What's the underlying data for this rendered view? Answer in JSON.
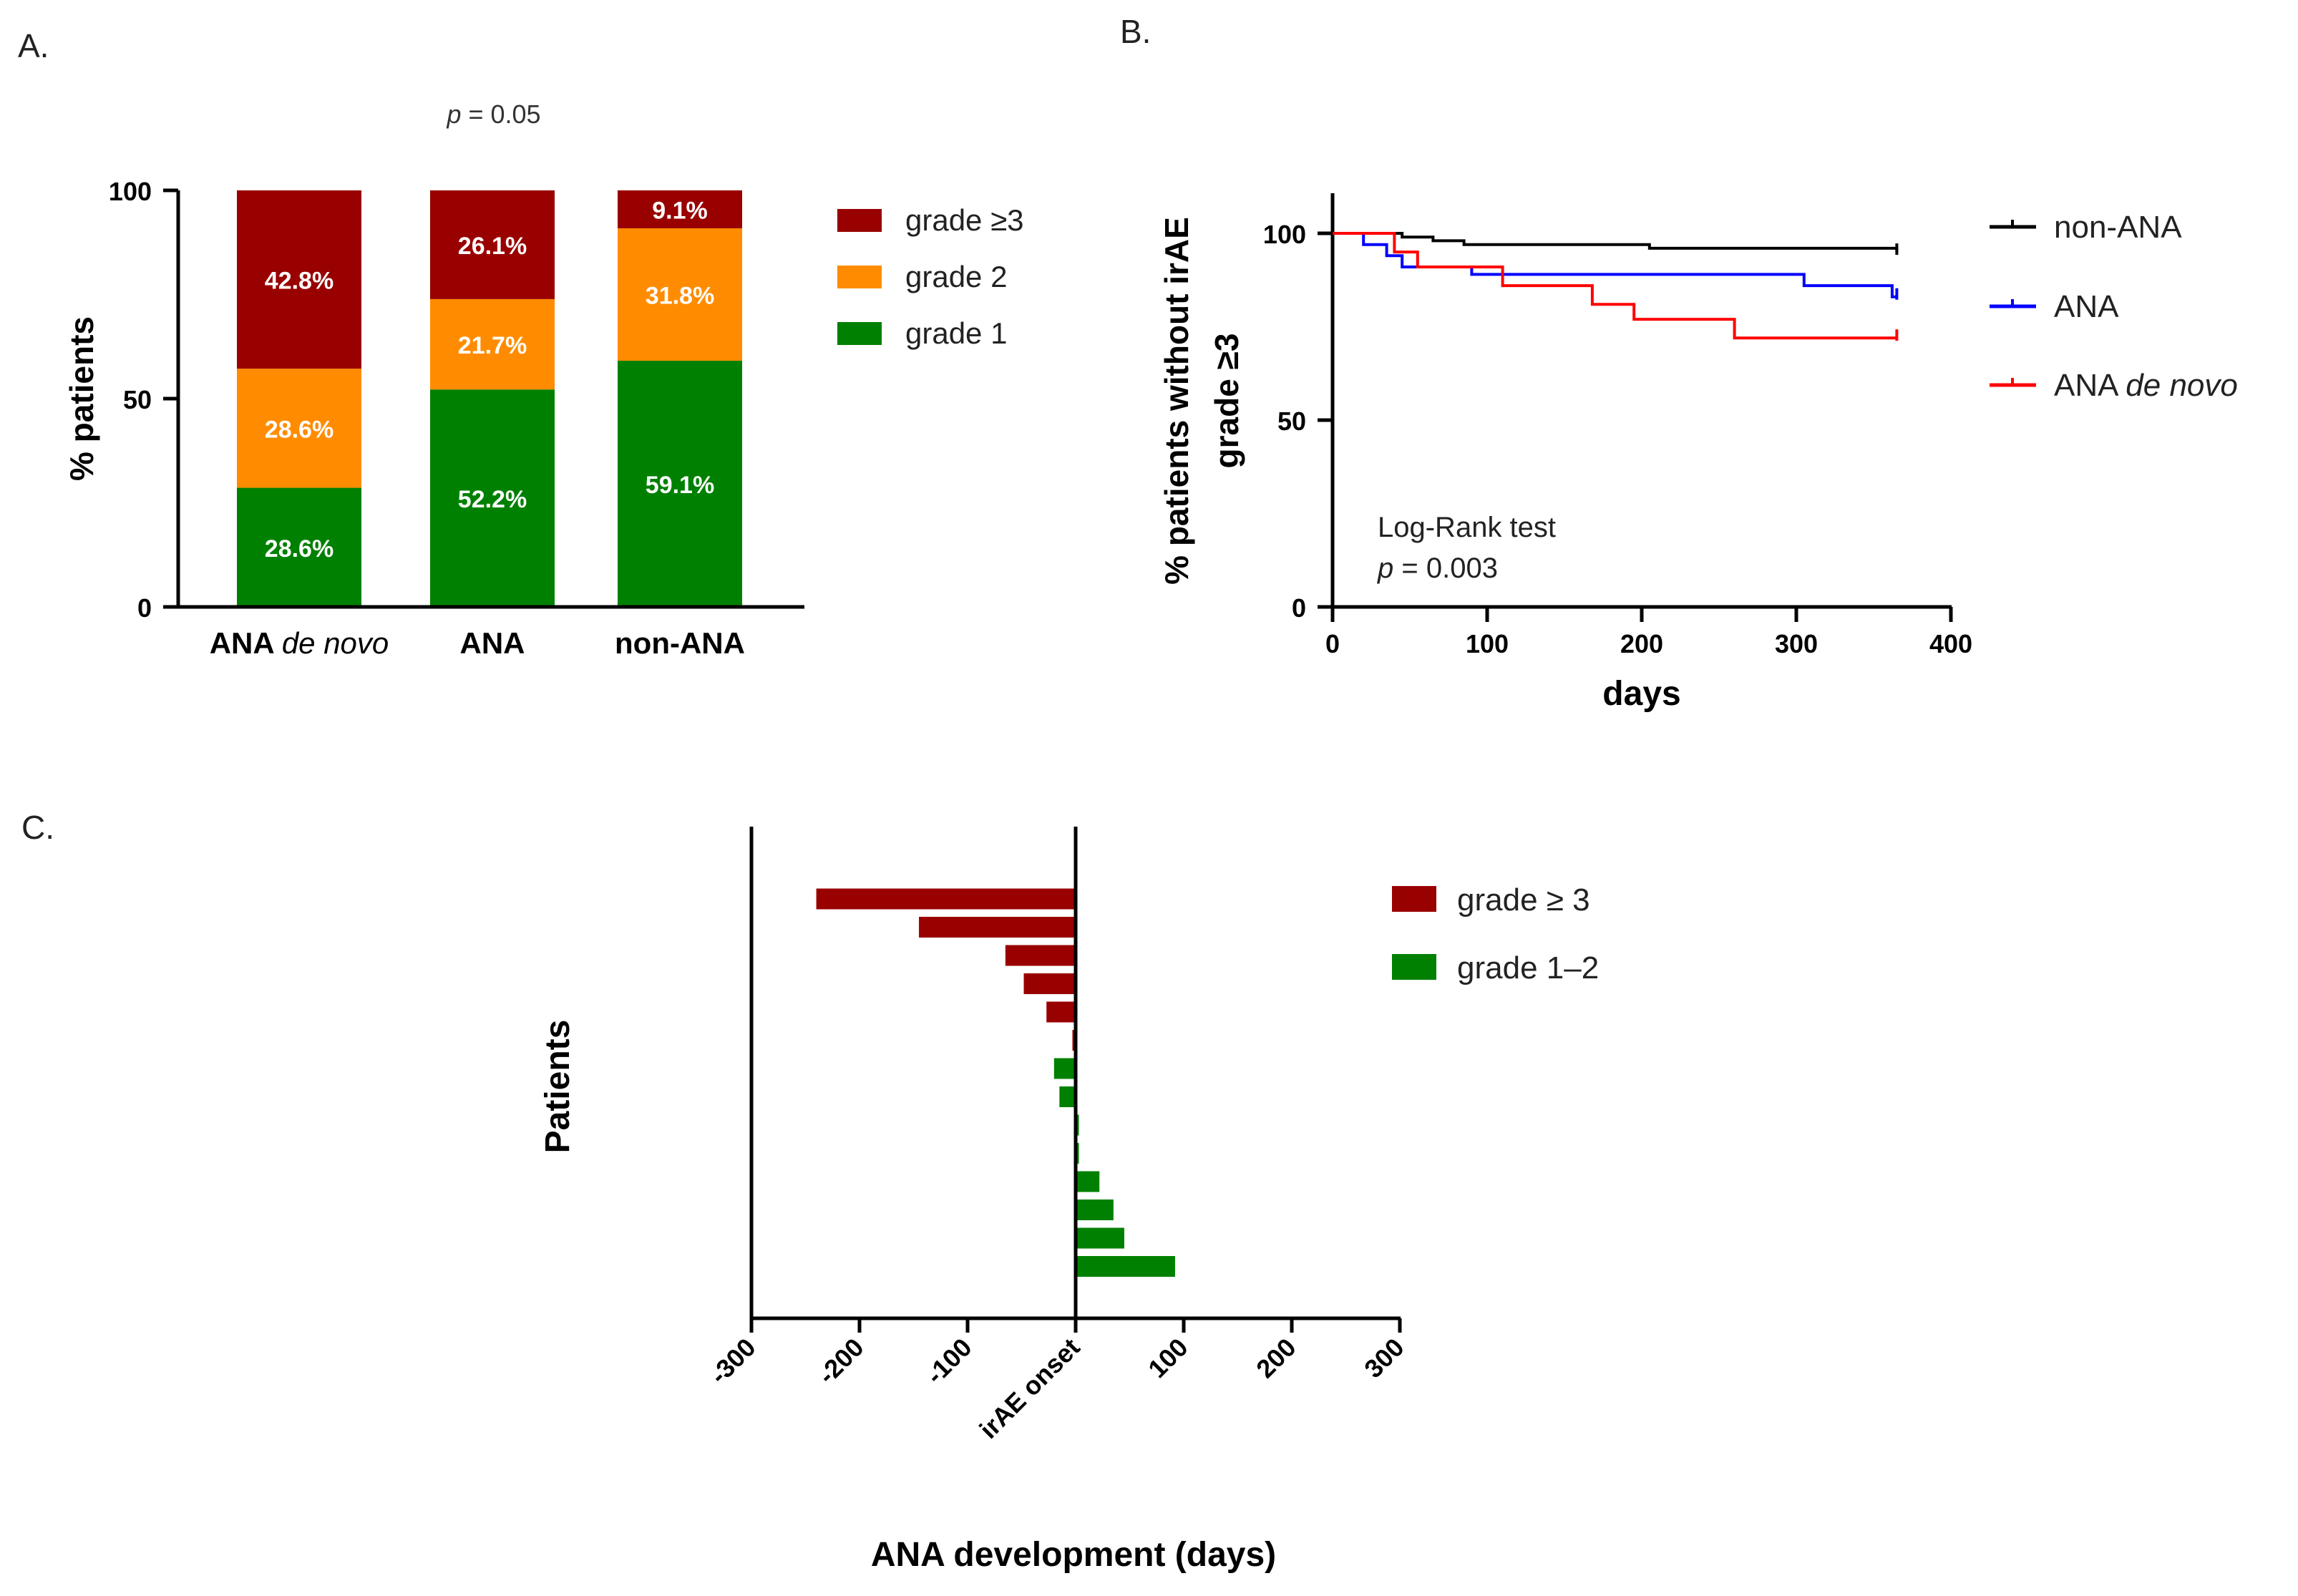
{
  "panels": {
    "a": "A.",
    "b": "B.",
    "c": "C."
  },
  "colors": {
    "grade3": "#990000",
    "grade2": "#ff8c00",
    "grade1": "#008000",
    "nonana": "#000000",
    "ana": "#0000ff",
    "ana_de_novo": "#ff0000"
  },
  "chart_data": [
    {
      "type": "bar",
      "stacked": true,
      "annotation": "p = 0.05",
      "ylabel": "% patients",
      "ylim": [
        0,
        100
      ],
      "yticks": [
        0,
        50,
        100
      ],
      "categories": [
        "ANA de novo",
        "ANA",
        "non-ANA"
      ],
      "category_parts": [
        {
          "plain": "ANA ",
          "italic": "de novo"
        },
        {
          "plain": "ANA",
          "italic": ""
        },
        {
          "plain": "non-ANA",
          "italic": ""
        }
      ],
      "series": [
        {
          "name": "grade 1",
          "values": [
            28.6,
            52.2,
            59.1
          ],
          "labels": [
            "28.6%",
            "52.2%",
            "59.1%"
          ]
        },
        {
          "name": "grade 2",
          "values": [
            28.6,
            21.7,
            31.8
          ],
          "labels": [
            "28.6%",
            "21.7%",
            "31.8%"
          ]
        },
        {
          "name": "grade ≥3",
          "values": [
            42.8,
            26.1,
            9.1
          ],
          "labels": [
            "42.8%",
            "26.1%",
            "9.1%"
          ]
        }
      ],
      "legend": [
        "grade ≥3",
        "grade 2",
        "grade 1"
      ],
      "legend_position": "right"
    },
    {
      "type": "line",
      "step": true,
      "xlabel": "days",
      "ylabel_lines": [
        "% patients without irAE",
        "grade ≥3"
      ],
      "xlim": [
        0,
        400
      ],
      "ylim": [
        0,
        110
      ],
      "xticks": [
        0,
        100,
        200,
        300,
        400
      ],
      "yticks": [
        0,
        50,
        100
      ],
      "annotation_lines": [
        "Log-Rank test",
        "p = 0.003"
      ],
      "series": [
        {
          "name": "non-ANA",
          "legend_plain": "non-ANA",
          "legend_italic": "",
          "points": [
            [
              0,
              100
            ],
            [
              45,
              100
            ],
            [
              45,
              99
            ],
            [
              65,
              99
            ],
            [
              65,
              98
            ],
            [
              85,
              98
            ],
            [
              85,
              97
            ],
            [
              205,
              97
            ],
            [
              205,
              96
            ],
            [
              365,
              96
            ],
            [
              365,
              95
            ]
          ]
        },
        {
          "name": "ANA",
          "legend_plain": "ANA",
          "legend_italic": "",
          "points": [
            [
              0,
              100
            ],
            [
              20,
              100
            ],
            [
              20,
              97
            ],
            [
              35,
              97
            ],
            [
              35,
              94
            ],
            [
              45,
              94
            ],
            [
              45,
              91
            ],
            [
              90,
              91
            ],
            [
              90,
              89
            ],
            [
              305,
              89
            ],
            [
              305,
              86
            ],
            [
              362,
              86
            ],
            [
              362,
              83
            ],
            [
              365,
              83
            ]
          ]
        },
        {
          "name": "ANA de novo",
          "legend_plain": "ANA ",
          "legend_italic": "de novo",
          "points": [
            [
              0,
              100
            ],
            [
              40,
              100
            ],
            [
              40,
              95
            ],
            [
              55,
              95
            ],
            [
              55,
              91
            ],
            [
              110,
              91
            ],
            [
              110,
              86
            ],
            [
              168,
              86
            ],
            [
              168,
              81
            ],
            [
              195,
              81
            ],
            [
              195,
              77
            ],
            [
              260,
              77
            ],
            [
              260,
              72
            ],
            [
              365,
              72
            ]
          ]
        }
      ],
      "legend_position": "right"
    },
    {
      "type": "bar",
      "orientation": "horizontal",
      "xlabel": "ANA development (days)",
      "ylabel": "Patients",
      "xlim": [
        -300,
        300
      ],
      "xticks": [
        "-300",
        "-200",
        "-100",
        "irAE onset",
        "100",
        "200",
        "300"
      ],
      "values": [
        -240,
        -145,
        -65,
        -48,
        -27,
        -3,
        -20,
        -15,
        3,
        3,
        22,
        35,
        45,
        92
      ],
      "grades": [
        "grade ≥ 3",
        "grade ≥ 3",
        "grade ≥ 3",
        "grade ≥ 3",
        "grade ≥ 3",
        "grade ≥ 3",
        "grade 1–2",
        "grade 1–2",
        "grade 1–2",
        "grade 1–2",
        "grade 1–2",
        "grade 1–2",
        "grade 1–2",
        "grade 1–2"
      ],
      "legend": [
        "grade ≥ 3",
        "grade 1–2"
      ],
      "legend_position": "right"
    }
  ]
}
